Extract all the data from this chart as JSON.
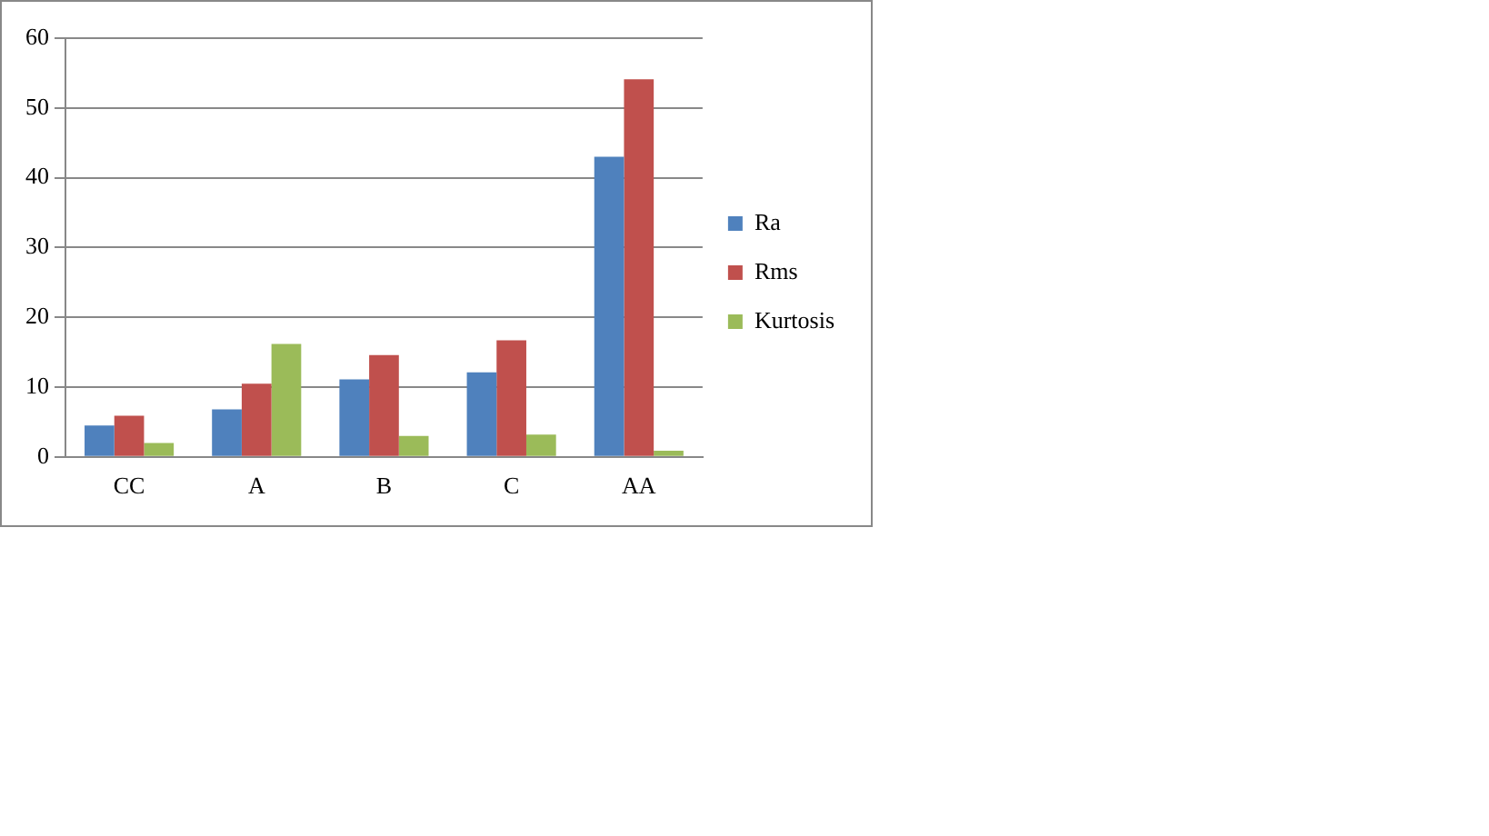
{
  "chart_data": {
    "type": "bar",
    "categories": [
      "CC",
      "A",
      "B",
      "C",
      "AA"
    ],
    "series": [
      {
        "name": "Ra",
        "color": "#4f81bd",
        "values": [
          4.5,
          6.8,
          11.1,
          12.1,
          43.0
        ]
      },
      {
        "name": "Rms",
        "color": "#c0504d",
        "values": [
          5.9,
          10.5,
          14.6,
          16.7,
          54.1
        ]
      },
      {
        "name": "Kurtosis",
        "color": "#9bbb59",
        "values": [
          2.0,
          16.2,
          3.0,
          3.2,
          0.9
        ]
      }
    ],
    "ylim": [
      0,
      60
    ],
    "yticks": [
      0,
      10,
      20,
      30,
      40,
      50,
      60
    ],
    "grid": "y",
    "legend": "right"
  }
}
